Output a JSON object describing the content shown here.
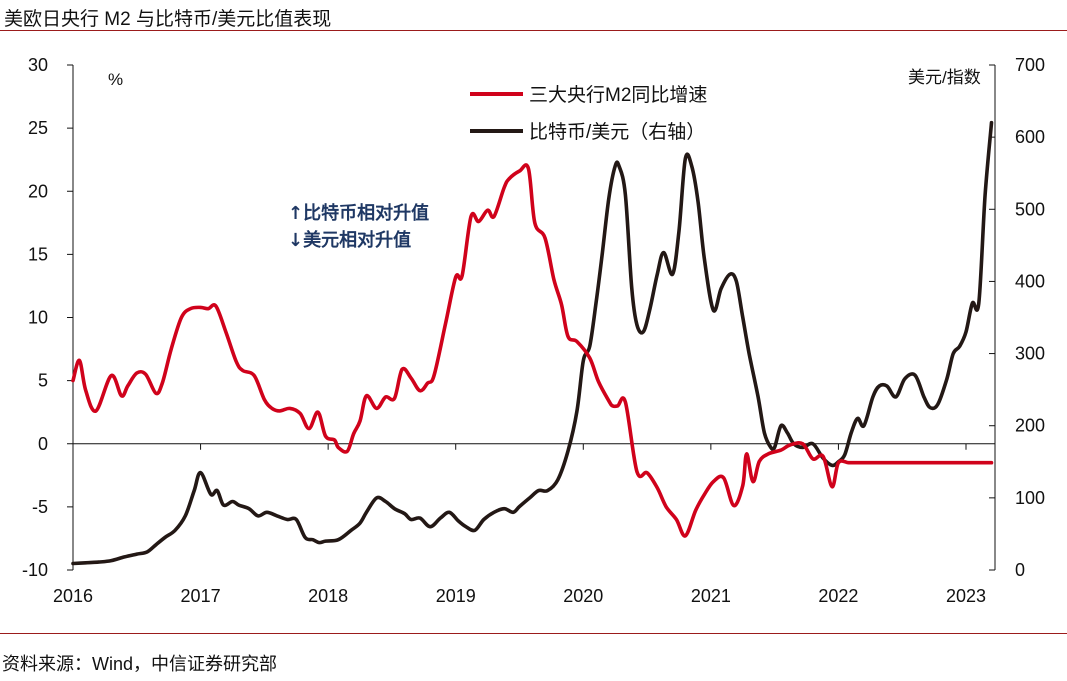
{
  "header": {
    "title": "美欧日央行 M2 与比特币/美元比值表现"
  },
  "footer": {
    "source": "资料来源：Wind，中信证券研究部"
  },
  "chart_data": {
    "type": "line",
    "title": "美欧日央行 M2 与比特币/美元比值表现",
    "xlabel": "",
    "ylabel_left": "%",
    "ylabel_right": "美元/指数",
    "x_ticks": [
      "2016",
      "2017",
      "2018",
      "2019",
      "2020",
      "2021",
      "2022",
      "2023"
    ],
    "x_range": [
      2016,
      2023.2
    ],
    "y_left": {
      "range": [
        -10,
        30
      ],
      "ticks": [
        "30",
        "25",
        "20",
        "15",
        "10",
        "5",
        "0",
        "-5",
        "-10"
      ]
    },
    "y_right": {
      "range": [
        0,
        700
      ],
      "ticks": [
        "700",
        "600",
        "500",
        "400",
        "300",
        "200",
        "100",
        "0"
      ]
    },
    "grid": false,
    "legend_position": "top-center",
    "annotations": [
      "↑比特币相对升值",
      "↓美元相对升值"
    ],
    "colors": {
      "m2": "#d0021b",
      "btc": "#231815",
      "annotation": "#1f3864"
    },
    "series": [
      {
        "name": "三大央行M2同比增速",
        "axis": "left",
        "color": "#d0021b",
        "x": [
          2016.0,
          2016.05,
          2016.1,
          2016.18,
          2016.3,
          2016.38,
          2016.43,
          2016.5,
          2016.57,
          2016.65,
          2016.7,
          2016.77,
          2016.85,
          2016.92,
          2017.0,
          2017.06,
          2017.12,
          2017.2,
          2017.28,
          2017.33,
          2017.42,
          2017.5,
          2017.56,
          2017.62,
          2017.7,
          2017.78,
          2017.85,
          2017.92,
          2017.98,
          2018.05,
          2018.08,
          2018.15,
          2018.2,
          2018.25,
          2018.3,
          2018.38,
          2018.45,
          2018.52,
          2018.58,
          2018.65,
          2018.72,
          2018.78,
          2018.83,
          2018.92,
          2019.0,
          2019.05,
          2019.12,
          2019.18,
          2019.25,
          2019.3,
          2019.38,
          2019.42,
          2019.5,
          2019.57,
          2019.62,
          2019.7,
          2019.77,
          2019.83,
          2019.88,
          2019.95,
          2020.05,
          2020.12,
          2020.2,
          2020.23,
          2020.27,
          2020.33,
          2020.42,
          2020.5,
          2020.58,
          2020.65,
          2020.73,
          2020.8,
          2020.88,
          2020.95,
          2021.02,
          2021.1,
          2021.18,
          2021.25,
          2021.28,
          2021.33,
          2021.38,
          2021.45,
          2021.55,
          2021.62,
          2021.72,
          2021.8,
          2021.88,
          2021.95,
          2022.0,
          2022.08,
          2022.15,
          2022.2,
          2022.27,
          2022.35,
          2022.42,
          2022.5,
          2022.57,
          2022.65,
          2022.73,
          2022.82,
          2022.88,
          2022.95,
          2023.02,
          2023.08,
          2023.15,
          2023.2
        ],
        "values": [
          5.0,
          6.6,
          4.2,
          2.6,
          5.4,
          3.8,
          4.6,
          5.6,
          5.5,
          4.0,
          4.8,
          7.5,
          10.0,
          10.7,
          10.8,
          10.7,
          10.9,
          8.8,
          6.5,
          5.8,
          5.4,
          3.5,
          2.8,
          2.6,
          2.8,
          2.4,
          1.2,
          2.5,
          0.6,
          0.3,
          -0.3,
          -0.6,
          0.8,
          1.8,
          3.8,
          2.8,
          3.7,
          3.6,
          5.9,
          5.2,
          4.2,
          4.8,
          5.4,
          9.5,
          13.2,
          13.3,
          18.0,
          17.6,
          18.5,
          18.0,
          20.3,
          21.0,
          21.6,
          21.8,
          17.5,
          16.3,
          13.0,
          11.0,
          8.5,
          8.1,
          6.8,
          4.9,
          3.4,
          3.0,
          3.0,
          3.3,
          -2.2,
          -2.3,
          -3.5,
          -5.0,
          -6.0,
          -7.3,
          -5.3,
          -4.0,
          -3.0,
          -2.7,
          -4.9,
          -3.3,
          -0.8,
          -3.0,
          -1.4,
          -0.8,
          -0.5,
          -0.1,
          0.0,
          -1.2,
          -1.0,
          -3.4,
          -1.5,
          -1.5,
          -1.5,
          -1.5,
          -1.5,
          -1.5,
          -1.5,
          -1.5,
          -1.5,
          -1.5,
          -1.5,
          -1.5,
          -1.5,
          -1.5,
          -1.5,
          -1.5,
          -1.5,
          -1.5
        ]
      },
      {
        "name": "比特币/美元（右轴）",
        "axis": "right",
        "color": "#231815",
        "x": [
          2016.0,
          2016.1,
          2016.2,
          2016.3,
          2016.4,
          2016.5,
          2016.58,
          2016.65,
          2016.72,
          2016.8,
          2016.88,
          2016.95,
          2017.0,
          2017.08,
          2017.13,
          2017.18,
          2017.25,
          2017.3,
          2017.38,
          2017.45,
          2017.52,
          2017.6,
          2017.68,
          2017.75,
          2017.82,
          2017.88,
          2017.93,
          2017.98,
          2018.08,
          2018.18,
          2018.25,
          2018.3,
          2018.38,
          2018.45,
          2018.52,
          2018.6,
          2018.65,
          2018.72,
          2018.8,
          2018.88,
          2018.95,
          2019.02,
          2019.08,
          2019.15,
          2019.22,
          2019.3,
          2019.38,
          2019.45,
          2019.5,
          2019.58,
          2019.65,
          2019.72,
          2019.8,
          2019.88,
          2019.95,
          2020.0,
          2020.05,
          2020.1,
          2020.15,
          2020.2,
          2020.25,
          2020.28,
          2020.33,
          2020.38,
          2020.42,
          2020.47,
          2020.52,
          2020.58,
          2020.63,
          2020.7,
          2020.75,
          2020.8,
          2020.85,
          2020.9,
          2020.95,
          2021.02,
          2021.08,
          2021.15,
          2021.2,
          2021.25,
          2021.3,
          2021.37,
          2021.42,
          2021.47,
          2021.5,
          2021.55,
          2021.6,
          2021.65,
          2021.72,
          2021.8,
          2021.88,
          2021.95,
          2022.0,
          2022.05,
          2022.1,
          2022.15,
          2022.2,
          2022.27,
          2022.32,
          2022.38,
          2022.45,
          2022.52,
          2022.6,
          2022.67,
          2022.72,
          2022.78,
          2022.85,
          2022.9,
          2022.95,
          2023.0,
          2023.05,
          2023.1,
          2023.15,
          2023.2
        ],
        "values": [
          9,
          10,
          11,
          13,
          18,
          22,
          25,
          35,
          45,
          55,
          75,
          110,
          135,
          105,
          110,
          90,
          95,
          90,
          85,
          75,
          80,
          75,
          70,
          70,
          45,
          42,
          38,
          40,
          42,
          55,
          65,
          80,
          100,
          95,
          85,
          78,
          70,
          72,
          60,
          72,
          80,
          68,
          60,
          55,
          70,
          80,
          85,
          80,
          88,
          100,
          110,
          110,
          125,
          165,
          220,
          290,
          310,
          370,
          440,
          515,
          560,
          560,
          520,
          390,
          340,
          330,
          360,
          410,
          440,
          410,
          470,
          570,
          560,
          510,
          430,
          360,
          390,
          410,
          400,
          350,
          300,
          240,
          190,
          170,
          170,
          200,
          190,
          175,
          170,
          175,
          155,
          145,
          150,
          160,
          190,
          210,
          200,
          240,
          255,
          255,
          240,
          265,
          270,
          240,
          225,
          230,
          265,
          300,
          310,
          330,
          370,
          370,
          520,
          620
        ]
      }
    ]
  }
}
